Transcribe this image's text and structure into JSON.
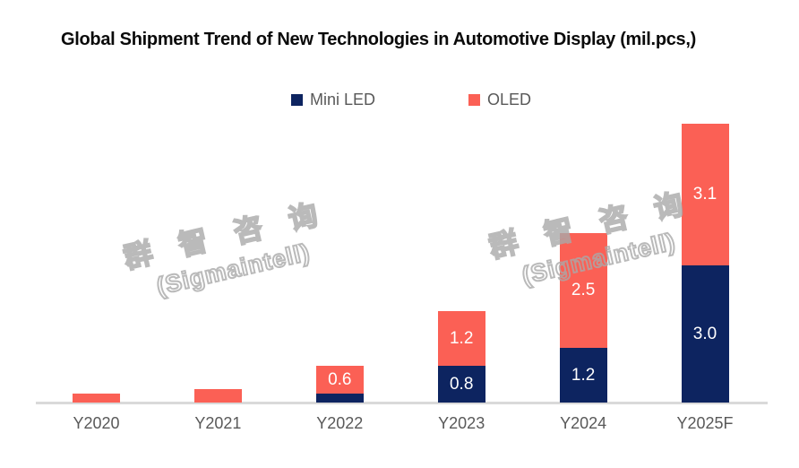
{
  "title": "Global Shipment Trend of New Technologies in Automotive Display (mil.pcs,)",
  "legend": {
    "items": [
      {
        "label": "Mini LED",
        "color": "#0D2460"
      },
      {
        "label": "OLED",
        "color": "#FB6055"
      }
    ]
  },
  "watermark": {
    "line1": "群 智 咨 询",
    "line2": "(Sigmaintell)"
  },
  "chart_data": {
    "type": "bar",
    "stacked": true,
    "title": "Global Shipment Trend of New Technologies in Automotive Display (mil.pcs,)",
    "categories": [
      "Y2020",
      "Y2021",
      "Y2022",
      "Y2023",
      "Y2024",
      "Y2025F"
    ],
    "series": [
      {
        "name": "Mini LED",
        "color": "#0D2460",
        "values": [
          0,
          0,
          0.2,
          0.8,
          1.2,
          3.0
        ],
        "labels": [
          "",
          "",
          "",
          "0.8",
          "1.2",
          "3.0"
        ]
      },
      {
        "name": "OLED",
        "color": "#FB6055",
        "values": [
          0.2,
          0.3,
          0.6,
          1.2,
          2.5,
          3.1
        ],
        "labels": [
          "",
          "",
          "0.6",
          "1.2",
          "2.5",
          "3.1"
        ]
      }
    ],
    "xlabel": "",
    "ylabel": "",
    "ylim": [
      0,
      6.5
    ],
    "grid": false,
    "legend_position": "top-center",
    "axis_line_color": "#D9D9D9",
    "value_label_color": "#FFFFFF",
    "tick_label_color": "#595959"
  }
}
